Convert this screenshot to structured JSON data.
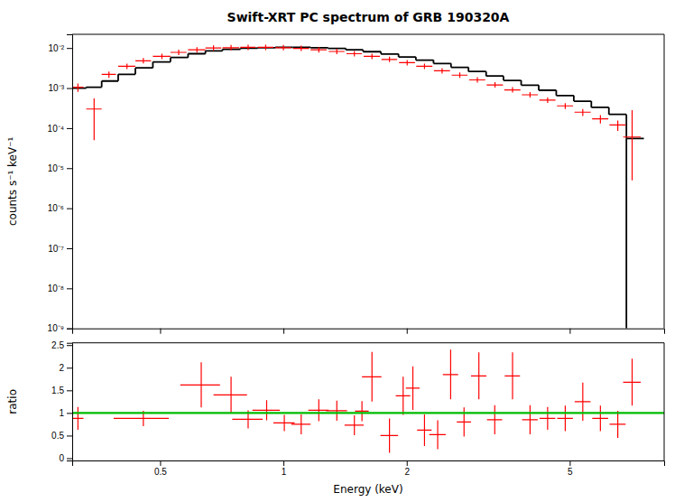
{
  "chart_data": [
    {
      "type": "scatter",
      "title": "Swift-XRT PC spectrum of GRB 190320A",
      "ylabel": "counts s⁻¹ keV⁻¹",
      "log": true,
      "xlim": [
        0.305,
        8.5
      ],
      "ylim": [
        1e-09,
        0.022
      ],
      "xticks": [
        0.5,
        1,
        2,
        5
      ],
      "yticks": [
        {
          "value": 1e-09,
          "label": "10⁻⁹"
        },
        {
          "value": 1e-08,
          "label": "10⁻⁸"
        },
        {
          "value": 1e-07,
          "label": "10⁻⁷"
        },
        {
          "value": 1e-06,
          "label": "10⁻⁶"
        },
        {
          "value": 1e-05,
          "label": "10⁻⁵"
        },
        {
          "value": 0.0001,
          "label": "10⁻⁴"
        },
        {
          "value": 0.001,
          "label": "10⁻³"
        },
        {
          "value": 0.01,
          "label": "10⁻²"
        }
      ],
      "tick_labels": "y",
      "series": [
        {
          "type": "step",
          "color": "#000000",
          "x": [
            0.305,
            0.33,
            0.36,
            0.395,
            0.435,
            0.48,
            0.53,
            0.585,
            0.645,
            0.71,
            0.785,
            0.865,
            0.955,
            1.055,
            1.165,
            1.285,
            1.42,
            1.565,
            1.73,
            1.91,
            2.105,
            2.325,
            2.565,
            2.83,
            3.125,
            3.445,
            3.805,
            4.2,
            4.635,
            5.115,
            5.645,
            6.23,
            6.875,
            7.585
          ],
          "values": [
            0.001,
            0.00105,
            0.0015,
            0.0022,
            0.0032,
            0.0045,
            0.0058,
            0.0072,
            0.0085,
            0.0093,
            0.0099,
            0.0102,
            0.0104,
            0.0104,
            0.0102,
            0.0098,
            0.009,
            0.0081,
            0.0071,
            0.006,
            0.005,
            0.0041,
            0.0033,
            0.0026,
            0.002,
            0.00155,
            0.00118,
            0.00088,
            0.00065,
            0.00047,
            0.00033,
            0.00022,
            5.5e-05,
            5.5e-05
          ]
        },
        {
          "type": "scatter",
          "color": "#ff0000",
          "marker": "plus",
          "x": [
            0.315,
            0.345,
            0.375,
            0.415,
            0.455,
            0.505,
            0.555,
            0.615,
            0.675,
            0.745,
            0.82,
            0.905,
            1.0,
            1.105,
            1.22,
            1.35,
            1.49,
            1.645,
            1.815,
            2.005,
            2.21,
            2.44,
            2.695,
            2.975,
            3.285,
            3.625,
            4.0,
            4.415,
            4.875,
            5.38,
            5.94,
            6.55
          ],
          "x_err_lo": [
            0.01,
            0.015,
            0.015,
            0.02,
            0.02,
            0.025,
            0.025,
            0.03,
            0.03,
            0.035,
            0.035,
            0.04,
            0.045,
            0.05,
            0.055,
            0.06,
            0.065,
            0.075,
            0.08,
            0.09,
            0.1,
            0.11,
            0.12,
            0.135,
            0.15,
            0.165,
            0.18,
            0.2,
            0.22,
            0.245,
            0.27,
            0.3
          ],
          "x_err_hi": [
            0.01,
            0.015,
            0.015,
            0.02,
            0.02,
            0.025,
            0.025,
            0.03,
            0.03,
            0.035,
            0.035,
            0.04,
            0.045,
            0.05,
            0.055,
            0.06,
            0.065,
            0.075,
            0.08,
            0.09,
            0.1,
            0.11,
            0.12,
            0.135,
            0.15,
            0.165,
            0.18,
            0.2,
            0.22,
            0.245,
            0.27,
            0.3
          ],
          "values": [
            0.00105,
            0.0003,
            0.0022,
            0.0035,
            0.0048,
            0.0062,
            0.0078,
            0.009,
            0.01,
            0.0102,
            0.0104,
            0.0104,
            0.0102,
            0.0098,
            0.009,
            0.0082,
            0.0072,
            0.0062,
            0.0052,
            0.0043,
            0.0035,
            0.0027,
            0.0021,
            0.0016,
            0.0012,
            0.0009,
            0.00068,
            0.0005,
            0.00036,
            0.00025,
            0.00017,
            0.00012
          ],
          "y_err": [
            0.00025,
            0.00025,
            0.0004,
            0.0005,
            0.0005,
            0.0005,
            0.0005,
            0.0005,
            0.0005,
            0.0005,
            0.0005,
            0.0004,
            0.0004,
            0.0004,
            0.00035,
            0.00035,
            0.0003,
            0.0003,
            0.0003,
            0.00025,
            0.00025,
            0.0002,
            0.00018,
            0.00015,
            0.00012,
            0.0001,
            8.5e-05,
            7e-05,
            6e-05,
            5e-05,
            4e-05,
            3.5e-05
          ]
        },
        {
          "type": "scatter",
          "color": "#ff0000",
          "marker": "plus",
          "x": [
            7.1
          ],
          "x_err_lo": [
            0.35
          ],
          "x_err_hi": [
            0.35
          ],
          "values": [
            6e-05
          ],
          "y_err_lo": [
            5.5e-05
          ],
          "y_err_hi": [
            0.00022
          ]
        }
      ]
    },
    {
      "type": "scatter",
      "xlabel": "Energy (keV)",
      "ylabel": "ratio",
      "log": "x",
      "xlim": [
        0.305,
        8.5
      ],
      "ylim": [
        -0.05,
        2.55
      ],
      "xticks": [
        0.5,
        1,
        2,
        5
      ],
      "yticks": [
        0,
        0.5,
        1,
        1.5,
        2,
        2.5
      ],
      "series": [
        {
          "type": "scatter",
          "color": "#ff0000",
          "marker": "plus",
          "x": [
            0.315,
            0.455,
            0.63,
            0.745,
            0.82,
            0.91,
            1.005,
            1.105,
            1.22,
            1.35,
            1.49,
            1.555,
            1.645,
            1.815,
            1.96,
            2.07,
            2.21,
            2.38,
            2.56,
            2.76,
            3.0,
            3.28,
            3.625,
            4.0,
            4.415,
            4.875,
            5.38,
            5.94,
            6.55,
            7.1
          ],
          "x_err_lo": [
            0.01,
            0.07,
            0.07,
            0.07,
            0.07,
            0.07,
            0.06,
            0.06,
            0.07,
            0.08,
            0.08,
            0.06,
            0.09,
            0.09,
            0.08,
            0.08,
            0.09,
            0.11,
            0.11,
            0.11,
            0.13,
            0.14,
            0.155,
            0.175,
            0.195,
            0.215,
            0.24,
            0.265,
            0.295,
            0.35
          ],
          "x_err_hi": [
            0.01,
            0.07,
            0.07,
            0.07,
            0.07,
            0.07,
            0.06,
            0.06,
            0.07,
            0.08,
            0.08,
            0.06,
            0.09,
            0.09,
            0.08,
            0.08,
            0.09,
            0.11,
            0.11,
            0.11,
            0.13,
            0.14,
            0.155,
            0.175,
            0.195,
            0.215,
            0.24,
            0.265,
            0.295,
            0.35
          ],
          "values": [
            0.88,
            0.88,
            1.62,
            1.4,
            0.86,
            1.06,
            0.78,
            0.75,
            1.06,
            1.05,
            0.73,
            1.04,
            1.8,
            0.5,
            1.38,
            1.55,
            0.62,
            0.52,
            1.85,
            0.8,
            1.82,
            0.85,
            1.82,
            0.85,
            0.88,
            0.88,
            1.25,
            0.88,
            0.75,
            1.68
          ],
          "y_err": [
            0.25,
            0.17,
            0.5,
            0.4,
            0.2,
            0.22,
            0.18,
            0.22,
            0.24,
            0.22,
            0.22,
            0.22,
            0.55,
            0.38,
            0.42,
            0.48,
            0.35,
            0.32,
            0.55,
            0.32,
            0.52,
            0.32,
            0.52,
            0.32,
            0.25,
            0.28,
            0.42,
            0.28,
            0.3,
            0.52
          ]
        },
        {
          "type": "hline",
          "color": "#00bb00",
          "values": [
            1.0
          ]
        }
      ]
    }
  ]
}
